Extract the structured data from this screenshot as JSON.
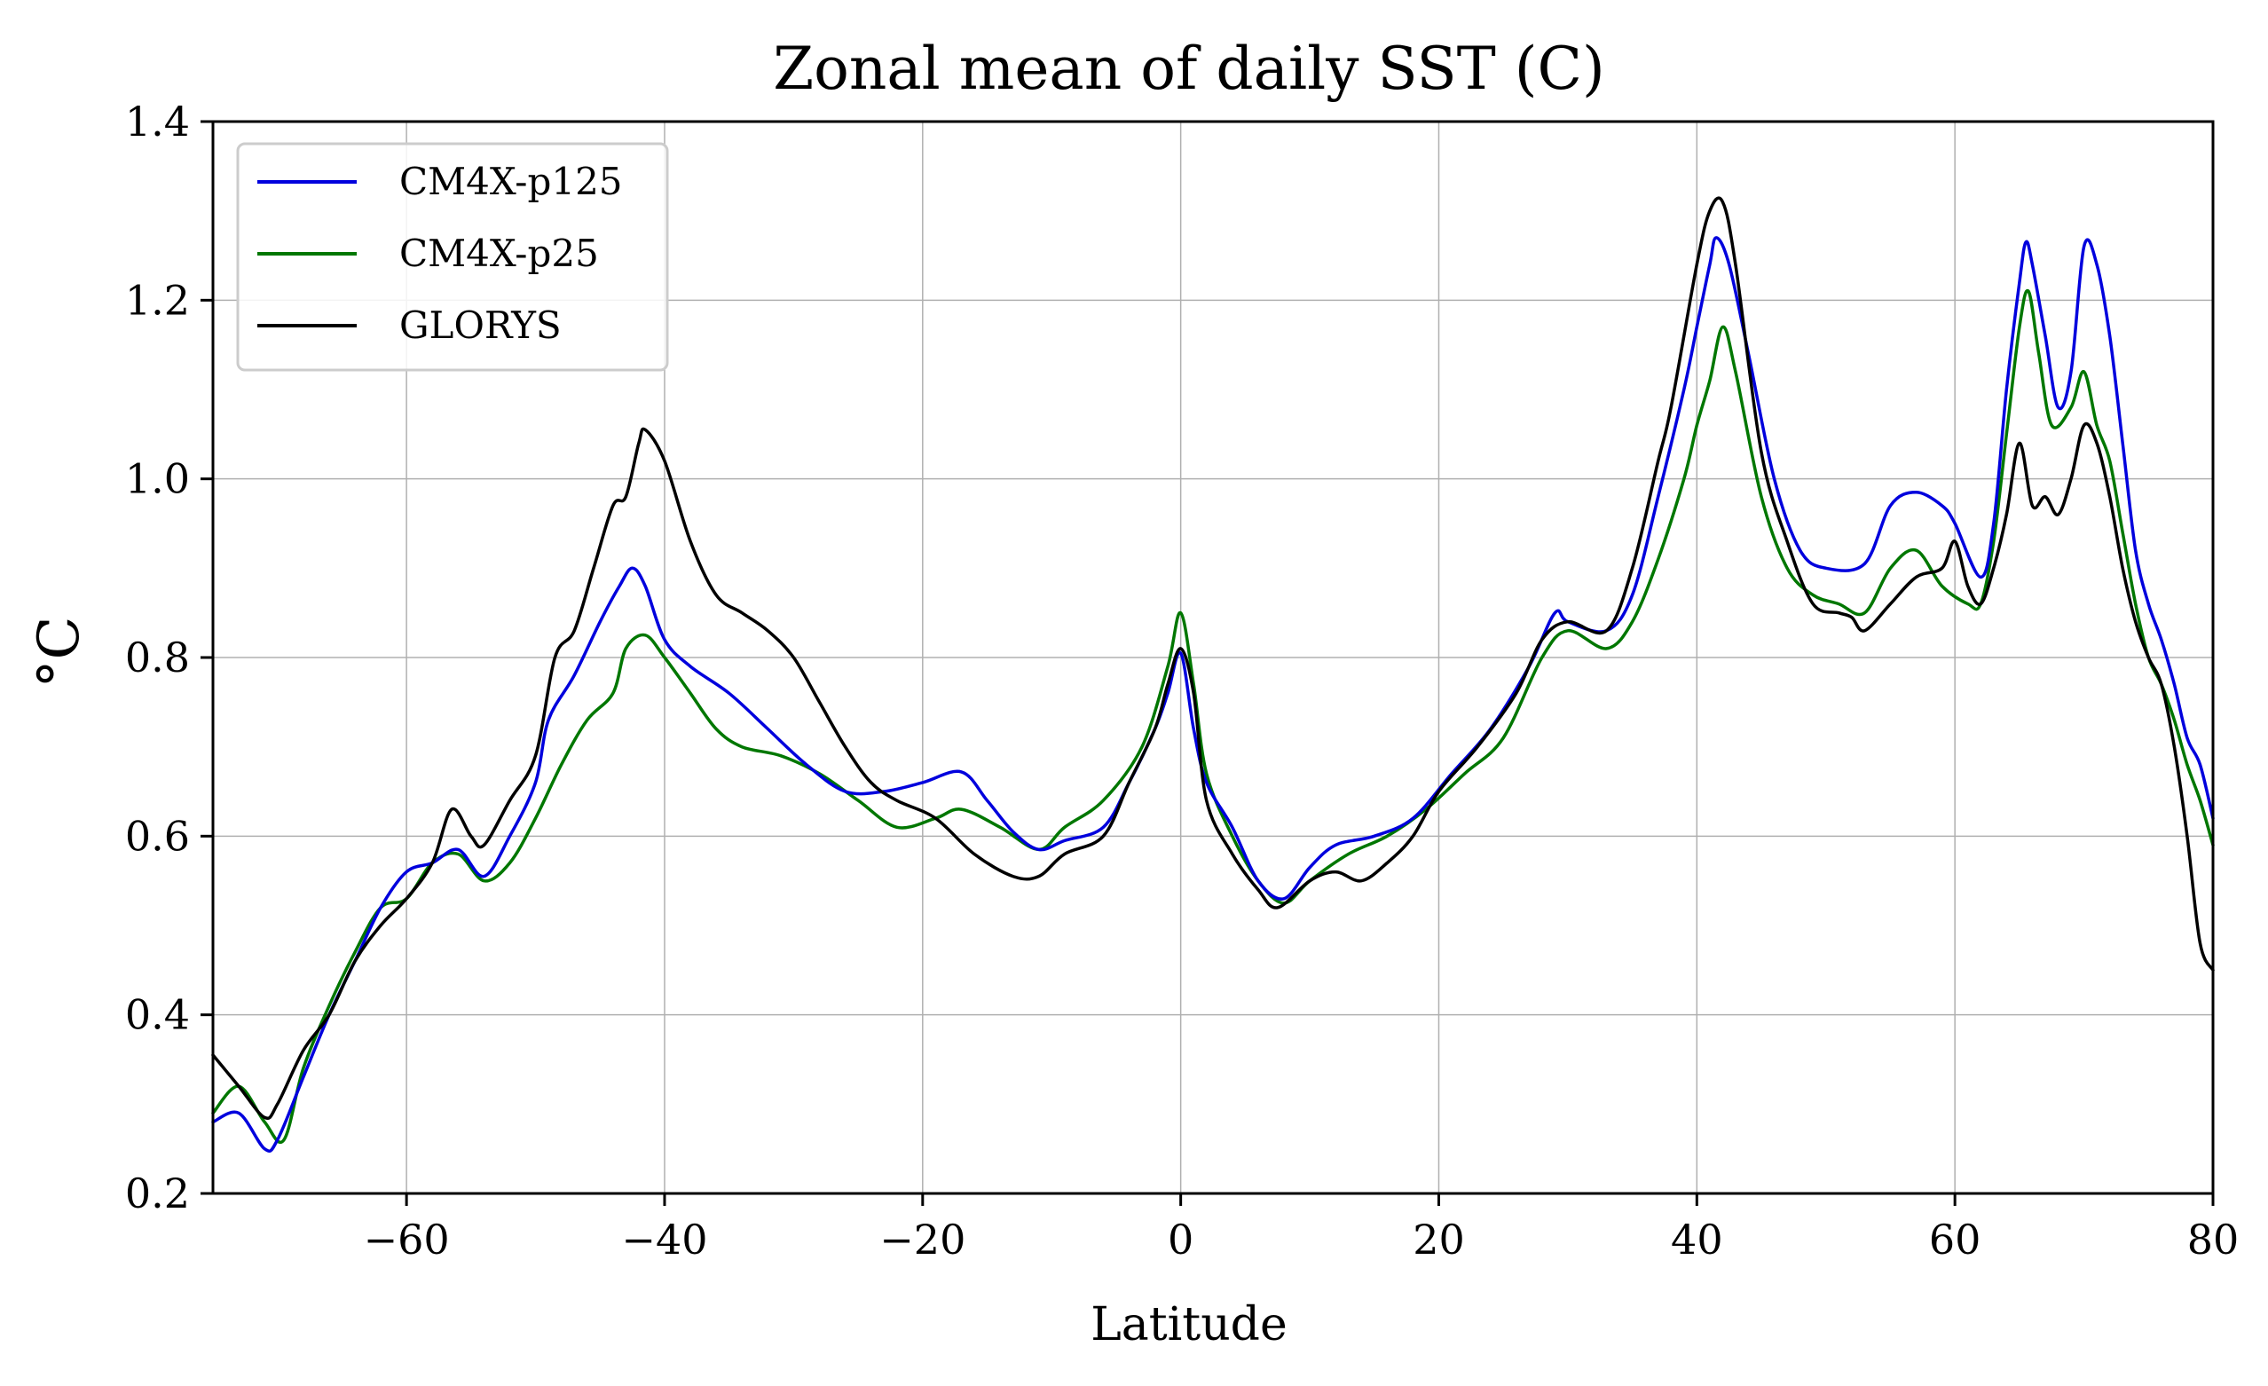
{
  "chart_data": {
    "type": "line",
    "title": "Zonal mean of daily SST (C)",
    "xlabel": "Latitude",
    "ylabel": "°C",
    "xlim": [
      -75,
      80
    ],
    "ylim": [
      0.2,
      1.4
    ],
    "xticks": [
      -60,
      -40,
      -20,
      0,
      20,
      40,
      60,
      80
    ],
    "xtick_labels": [
      "−60",
      "−40",
      "−20",
      "0",
      "20",
      "40",
      "60",
      "80"
    ],
    "yticks": [
      0.2,
      0.4,
      0.6,
      0.8,
      1.0,
      1.2,
      1.4
    ],
    "ytick_labels": [
      "0.2",
      "0.4",
      "0.6",
      "0.8",
      "1.0",
      "1.2",
      "1.4"
    ],
    "grid": true,
    "legend_position": "top-left",
    "series": [
      {
        "name": "CM4X-p125",
        "color": "#0000dd",
        "points": [
          [
            -75,
            0.28
          ],
          [
            -73,
            0.29
          ],
          [
            -71,
            0.25
          ],
          [
            -70,
            0.26
          ],
          [
            -68,
            0.33
          ],
          [
            -66,
            0.4
          ],
          [
            -64,
            0.46
          ],
          [
            -62,
            0.52
          ],
          [
            -60,
            0.56
          ],
          [
            -58,
            0.57
          ],
          [
            -56,
            0.585
          ],
          [
            -54,
            0.555
          ],
          [
            -52,
            0.6
          ],
          [
            -50,
            0.66
          ],
          [
            -49,
            0.73
          ],
          [
            -47,
            0.78
          ],
          [
            -45,
            0.84
          ],
          [
            -43.5,
            0.88
          ],
          [
            -42.5,
            0.9
          ],
          [
            -41.5,
            0.88
          ],
          [
            -40,
            0.82
          ],
          [
            -38,
            0.79
          ],
          [
            -35,
            0.76
          ],
          [
            -32,
            0.72
          ],
          [
            -29,
            0.68
          ],
          [
            -26,
            0.65
          ],
          [
            -23,
            0.65
          ],
          [
            -20,
            0.66
          ],
          [
            -17,
            0.672
          ],
          [
            -15,
            0.64
          ],
          [
            -13,
            0.605
          ],
          [
            -11,
            0.585
          ],
          [
            -9,
            0.595
          ],
          [
            -6,
            0.61
          ],
          [
            -4,
            0.66
          ],
          [
            -2,
            0.72
          ],
          [
            -1,
            0.76
          ],
          [
            0,
            0.805
          ],
          [
            1,
            0.72
          ],
          [
            2,
            0.66
          ],
          [
            4,
            0.61
          ],
          [
            6,
            0.55
          ],
          [
            8,
            0.53
          ],
          [
            10,
            0.565
          ],
          [
            12,
            0.59
          ],
          [
            15,
            0.6
          ],
          [
            18,
            0.62
          ],
          [
            21,
            0.67
          ],
          [
            24,
            0.72
          ],
          [
            27,
            0.79
          ],
          [
            29,
            0.85
          ],
          [
            30,
            0.84
          ],
          [
            33,
            0.83
          ],
          [
            35,
            0.87
          ],
          [
            37,
            0.98
          ],
          [
            39,
            1.1
          ],
          [
            40,
            1.17
          ],
          [
            41,
            1.24
          ],
          [
            41.5,
            1.27
          ],
          [
            42.5,
            1.24
          ],
          [
            44,
            1.14
          ],
          [
            46,
            1.0
          ],
          [
            48,
            0.92
          ],
          [
            50,
            0.9
          ],
          [
            53,
            0.905
          ],
          [
            55,
            0.97
          ],
          [
            57,
            0.985
          ],
          [
            59,
            0.97
          ],
          [
            60,
            0.95
          ],
          [
            62,
            0.89
          ],
          [
            63,
            0.95
          ],
          [
            64,
            1.1
          ],
          [
            65,
            1.22
          ],
          [
            65.5,
            1.265
          ],
          [
            66,
            1.24
          ],
          [
            67,
            1.16
          ],
          [
            68,
            1.08
          ],
          [
            69,
            1.12
          ],
          [
            70,
            1.26
          ],
          [
            71,
            1.24
          ],
          [
            72,
            1.16
          ],
          [
            73,
            1.04
          ],
          [
            74,
            0.92
          ],
          [
            75,
            0.86
          ],
          [
            76,
            0.82
          ],
          [
            77,
            0.77
          ],
          [
            78,
            0.71
          ],
          [
            79,
            0.68
          ],
          [
            80,
            0.62
          ]
        ]
      },
      {
        "name": "CM4X-p25",
        "color": "#007700",
        "points": [
          [
            -75,
            0.29
          ],
          [
            -73,
            0.32
          ],
          [
            -71,
            0.28
          ],
          [
            -69.5,
            0.26
          ],
          [
            -68,
            0.34
          ],
          [
            -66,
            0.41
          ],
          [
            -64,
            0.47
          ],
          [
            -62,
            0.52
          ],
          [
            -60,
            0.53
          ],
          [
            -58,
            0.57
          ],
          [
            -56,
            0.58
          ],
          [
            -54,
            0.55
          ],
          [
            -52,
            0.57
          ],
          [
            -50,
            0.62
          ],
          [
            -48,
            0.68
          ],
          [
            -46,
            0.73
          ],
          [
            -44,
            0.76
          ],
          [
            -43,
            0.81
          ],
          [
            -41.5,
            0.825
          ],
          [
            -40,
            0.8
          ],
          [
            -38,
            0.76
          ],
          [
            -36,
            0.72
          ],
          [
            -34,
            0.7
          ],
          [
            -31,
            0.69
          ],
          [
            -28,
            0.67
          ],
          [
            -25,
            0.64
          ],
          [
            -22,
            0.61
          ],
          [
            -19,
            0.62
          ],
          [
            -17,
            0.63
          ],
          [
            -14,
            0.61
          ],
          [
            -11,
            0.585
          ],
          [
            -9,
            0.61
          ],
          [
            -6,
            0.64
          ],
          [
            -3,
            0.7
          ],
          [
            -1,
            0.79
          ],
          [
            0,
            0.85
          ],
          [
            1,
            0.77
          ],
          [
            2,
            0.67
          ],
          [
            4,
            0.6
          ],
          [
            6,
            0.55
          ],
          [
            8,
            0.525
          ],
          [
            10,
            0.55
          ],
          [
            13,
            0.58
          ],
          [
            16,
            0.6
          ],
          [
            19,
            0.63
          ],
          [
            22,
            0.67
          ],
          [
            25,
            0.71
          ],
          [
            28,
            0.8
          ],
          [
            30,
            0.83
          ],
          [
            33,
            0.81
          ],
          [
            35,
            0.84
          ],
          [
            37,
            0.91
          ],
          [
            39,
            1.0
          ],
          [
            40,
            1.06
          ],
          [
            41,
            1.11
          ],
          [
            42,
            1.17
          ],
          [
            43,
            1.12
          ],
          [
            45,
            0.98
          ],
          [
            47,
            0.9
          ],
          [
            49,
            0.87
          ],
          [
            51,
            0.86
          ],
          [
            53,
            0.85
          ],
          [
            55,
            0.9
          ],
          [
            57,
            0.92
          ],
          [
            59,
            0.88
          ],
          [
            61,
            0.86
          ],
          [
            62,
            0.86
          ],
          [
            63,
            0.93
          ],
          [
            64,
            1.05
          ],
          [
            65,
            1.17
          ],
          [
            65.7,
            1.21
          ],
          [
            66.5,
            1.14
          ],
          [
            67.5,
            1.06
          ],
          [
            69,
            1.08
          ],
          [
            70,
            1.12
          ],
          [
            71,
            1.06
          ],
          [
            72,
            1.02
          ],
          [
            73,
            0.94
          ],
          [
            74,
            0.86
          ],
          [
            75,
            0.8
          ],
          [
            76,
            0.77
          ],
          [
            77,
            0.73
          ],
          [
            78,
            0.68
          ],
          [
            79,
            0.64
          ],
          [
            80,
            0.59
          ]
        ]
      },
      {
        "name": "GLORYS",
        "color": "#000000",
        "points": [
          [
            -75,
            0.355
          ],
          [
            -73,
            0.32
          ],
          [
            -71,
            0.285
          ],
          [
            -70,
            0.3
          ],
          [
            -68,
            0.36
          ],
          [
            -66,
            0.4
          ],
          [
            -64,
            0.46
          ],
          [
            -62,
            0.5
          ],
          [
            -60,
            0.53
          ],
          [
            -58,
            0.57
          ],
          [
            -56.5,
            0.63
          ],
          [
            -55,
            0.6
          ],
          [
            -54,
            0.59
          ],
          [
            -52,
            0.64
          ],
          [
            -50,
            0.69
          ],
          [
            -48.5,
            0.8
          ],
          [
            -47,
            0.83
          ],
          [
            -45.5,
            0.9
          ],
          [
            -44,
            0.97
          ],
          [
            -43,
            0.98
          ],
          [
            -42,
            1.04
          ],
          [
            -41.5,
            1.055
          ],
          [
            -40,
            1.02
          ],
          [
            -38,
            0.93
          ],
          [
            -36,
            0.87
          ],
          [
            -34,
            0.85
          ],
          [
            -32,
            0.83
          ],
          [
            -30,
            0.8
          ],
          [
            -28,
            0.75
          ],
          [
            -26,
            0.7
          ],
          [
            -24,
            0.66
          ],
          [
            -22,
            0.64
          ],
          [
            -19,
            0.62
          ],
          [
            -16,
            0.58
          ],
          [
            -13,
            0.555
          ],
          [
            -11,
            0.555
          ],
          [
            -9,
            0.58
          ],
          [
            -6,
            0.6
          ],
          [
            -4,
            0.66
          ],
          [
            -2,
            0.72
          ],
          [
            -1,
            0.77
          ],
          [
            0,
            0.81
          ],
          [
            1,
            0.76
          ],
          [
            2,
            0.64
          ],
          [
            4,
            0.58
          ],
          [
            6,
            0.54
          ],
          [
            7.5,
            0.52
          ],
          [
            10,
            0.55
          ],
          [
            12,
            0.56
          ],
          [
            14,
            0.55
          ],
          [
            16,
            0.57
          ],
          [
            18,
            0.6
          ],
          [
            20,
            0.65
          ],
          [
            23,
            0.7
          ],
          [
            26,
            0.76
          ],
          [
            28,
            0.82
          ],
          [
            30,
            0.84
          ],
          [
            33,
            0.83
          ],
          [
            35,
            0.9
          ],
          [
            37,
            1.02
          ],
          [
            38,
            1.08
          ],
          [
            40,
            1.24
          ],
          [
            41,
            1.3
          ],
          [
            42,
            1.31
          ],
          [
            43,
            1.24
          ],
          [
            45,
            1.03
          ],
          [
            47,
            0.93
          ],
          [
            49,
            0.86
          ],
          [
            51,
            0.85
          ],
          [
            52,
            0.845
          ],
          [
            53,
            0.83
          ],
          [
            55,
            0.86
          ],
          [
            57,
            0.89
          ],
          [
            59,
            0.9
          ],
          [
            60,
            0.93
          ],
          [
            61,
            0.88
          ],
          [
            62,
            0.86
          ],
          [
            63,
            0.9
          ],
          [
            64,
            0.96
          ],
          [
            65,
            1.04
          ],
          [
            66,
            0.97
          ],
          [
            67,
            0.98
          ],
          [
            68,
            0.96
          ],
          [
            69,
            1.0
          ],
          [
            70,
            1.06
          ],
          [
            71,
            1.04
          ],
          [
            72,
            0.98
          ],
          [
            73,
            0.9
          ],
          [
            74,
            0.84
          ],
          [
            75,
            0.8
          ],
          [
            76,
            0.77
          ],
          [
            77,
            0.7
          ],
          [
            78,
            0.6
          ],
          [
            79,
            0.48
          ],
          [
            80,
            0.45
          ]
        ]
      }
    ]
  }
}
